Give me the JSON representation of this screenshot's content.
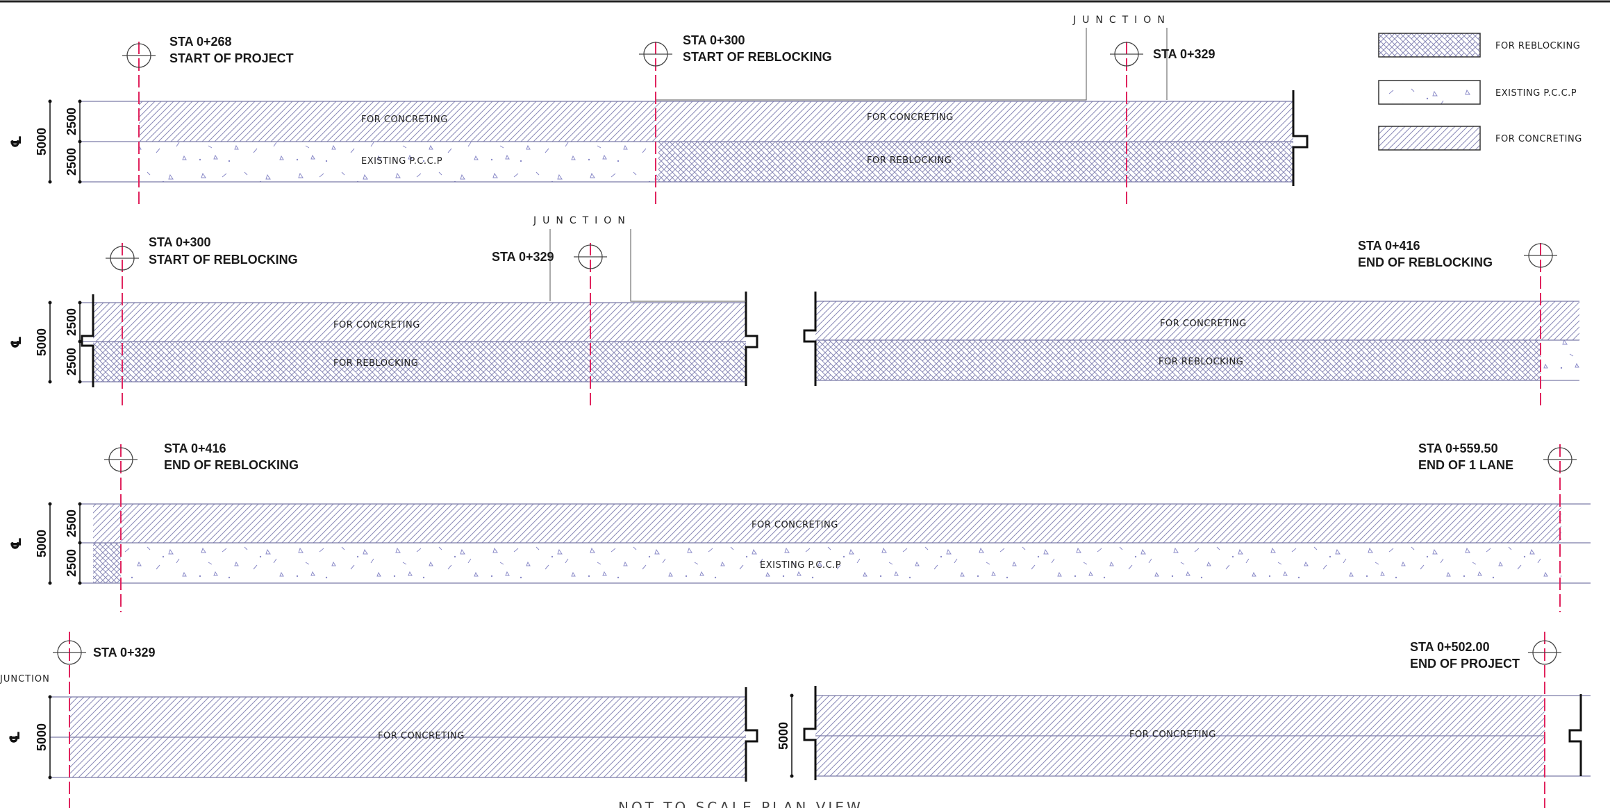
{
  "colors": {
    "line": "#7a7aa8",
    "hatch": "#8a8ab8",
    "centerline": "#e0245e",
    "ink": "#111111",
    "speckle": "#8a8ac8"
  },
  "legend": [
    {
      "pattern": "reblock",
      "label": "FOR REBLOCKING"
    },
    {
      "pattern": "pccp",
      "label": "EXISTING P.C.C.P"
    },
    {
      "pattern": "concrete",
      "label": "FOR CONCRETING"
    }
  ],
  "labels": {
    "junction": "JUNCTION",
    "cl_symbol": "℄",
    "for_concreting": "FOR CONCRETING",
    "for_reblocking": "FOR REBLOCKING",
    "existing_pccp": "EXISTING P.C.C.P",
    "dim_5000": "5000",
    "dim_2500": "2500",
    "bottom_title": "NOT TO SCALE PLAN VIEW"
  },
  "stations": {
    "s1_a": {
      "sta": "STA 0+268",
      "desc": "START OF PROJECT"
    },
    "s1_b": {
      "sta": "STA 0+300",
      "desc": "START OF REBLOCKING"
    },
    "s1_c": {
      "sta": "STA 0+329",
      "desc": ""
    },
    "s2_a": {
      "sta": "STA 0+300",
      "desc": "START OF REBLOCKING"
    },
    "s2_b": {
      "sta": "STA 0+329",
      "desc": ""
    },
    "s2_c": {
      "sta": "STA 0+416",
      "desc": "END OF REBLOCKING"
    },
    "s3_a": {
      "sta": "STA 0+416",
      "desc": "END OF REBLOCKING"
    },
    "s3_b": {
      "sta": "STA 0+559.50",
      "desc": "END OF 1 LANE"
    },
    "s4_a": {
      "sta": "STA 0+329",
      "desc": ""
    },
    "s4_b": {
      "sta": "STA 0+502.00",
      "desc": "END OF PROJECT"
    }
  }
}
